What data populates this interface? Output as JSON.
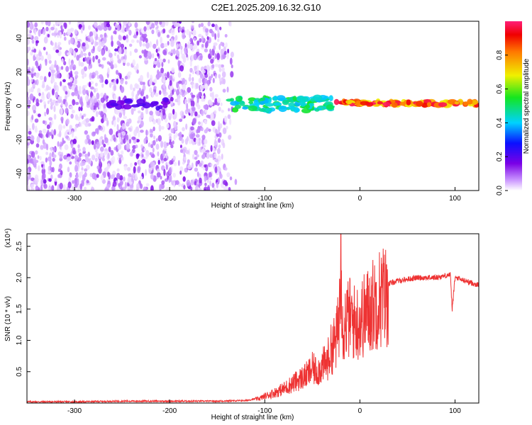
{
  "figure": {
    "title": "C2E1.2025.209.16.32.G10"
  },
  "chart_data": [
    {
      "type": "heatmap",
      "xlabel": "Height of straight line (km)",
      "ylabel": "Frequency (Hz)",
      "xlim": [
        -350,
        125
      ],
      "ylim": [
        -50,
        50
      ],
      "xticks": [
        -300,
        -200,
        -100,
        0,
        100
      ],
      "yticks": [
        -40,
        -20,
        0,
        20,
        40
      ],
      "colorbar": {
        "label": "Normalized spectral amplitude",
        "range": [
          0,
          1
        ],
        "ticks": [
          "0.0",
          "0.2",
          "0.4",
          "0.6",
          "0.8"
        ],
        "colormap": "rainbow (white-violet-blue-cyan-green-yellow-red-pink)"
      },
      "features": [
        {
          "x_range": [
            -350,
            -140
          ],
          "y_range": [
            -50,
            50
          ],
          "amplitude": 0.1,
          "description": "scattered noise"
        },
        {
          "x_range": [
            -265,
            -200
          ],
          "y_center": 1,
          "amplitude": 0.2
        },
        {
          "x_range": [
            -140,
            -30
          ],
          "y_center": 1,
          "amplitude": 0.5
        },
        {
          "x_range": [
            -30,
            125
          ],
          "y_center": 1.5,
          "amplitude": 0.9
        }
      ]
    },
    {
      "type": "line",
      "xlabel": "Height of straight line (km)",
      "ylabel": "SNR (10 * v/v)",
      "y_multiplier": "(x10⁴)",
      "xlim": [
        -350,
        125
      ],
      "ylim": [
        0,
        2.7
      ],
      "xticks": [
        -300,
        -200,
        -100,
        0,
        100
      ],
      "yticks": [
        "0.5",
        "1.0",
        "1.5",
        "2.0",
        "2.5"
      ],
      "color": "#ee3333",
      "series": [
        {
          "x": [
            -350,
            -300,
            -250,
            -200,
            -150,
            -120,
            -105,
            -100,
            -90,
            -80,
            -70,
            -60,
            -55,
            -50,
            -45,
            -40,
            -35,
            -30,
            -25,
            -22,
            -20,
            -18,
            -15,
            -10,
            -5,
            0,
            10,
            20,
            30,
            40,
            60,
            80,
            95,
            97,
            100,
            110,
            125
          ],
          "y": [
            0.02,
            0.02,
            0.03,
            0.03,
            0.03,
            0.04,
            0.08,
            0.12,
            0.18,
            0.25,
            0.35,
            0.45,
            0.5,
            0.6,
            0.55,
            0.65,
            0.7,
            0.95,
            1.1,
            1.4,
            2.7,
            1.3,
            1.45,
            1.5,
            1.4,
            1.45,
            1.65,
            1.85,
            1.9,
            1.95,
            2.0,
            2.0,
            2.05,
            1.5,
            2.0,
            1.95,
            1.88
          ]
        }
      ]
    }
  ]
}
